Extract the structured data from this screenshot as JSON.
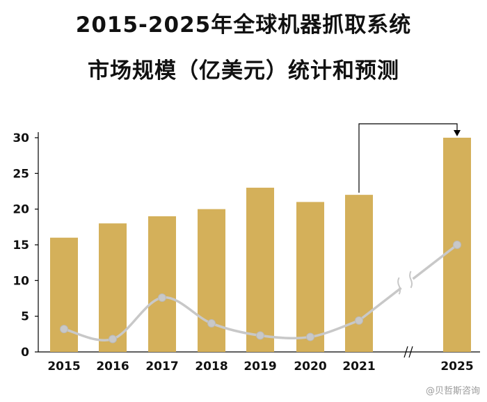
{
  "title_line1": "2015-2025年全球机器抓取系统",
  "title_line2": "市场规模（亿美元）统计和预测",
  "watermark": "@贝哲斯咨询",
  "colors": {
    "bar": "#d4b05a",
    "line": "#c8c8c8",
    "text": "#111111"
  },
  "chart_data": {
    "type": "bar",
    "categories": [
      "2015",
      "2016",
      "2017",
      "2018",
      "2019",
      "2020",
      "2021",
      "2025"
    ],
    "values": [
      16,
      18,
      19,
      20,
      23,
      21,
      22,
      30
    ],
    "line_values": [
      3.2,
      1.8,
      7.6,
      4.0,
      2.3,
      2.1,
      4.4,
      15.0
    ],
    "yticks": [
      "0",
      "5",
      "10",
      "15",
      "20",
      "25",
      "30"
    ],
    "ylim": [
      0,
      30
    ],
    "grid": false,
    "axis_break_between": [
      "2021",
      "2025"
    ]
  }
}
